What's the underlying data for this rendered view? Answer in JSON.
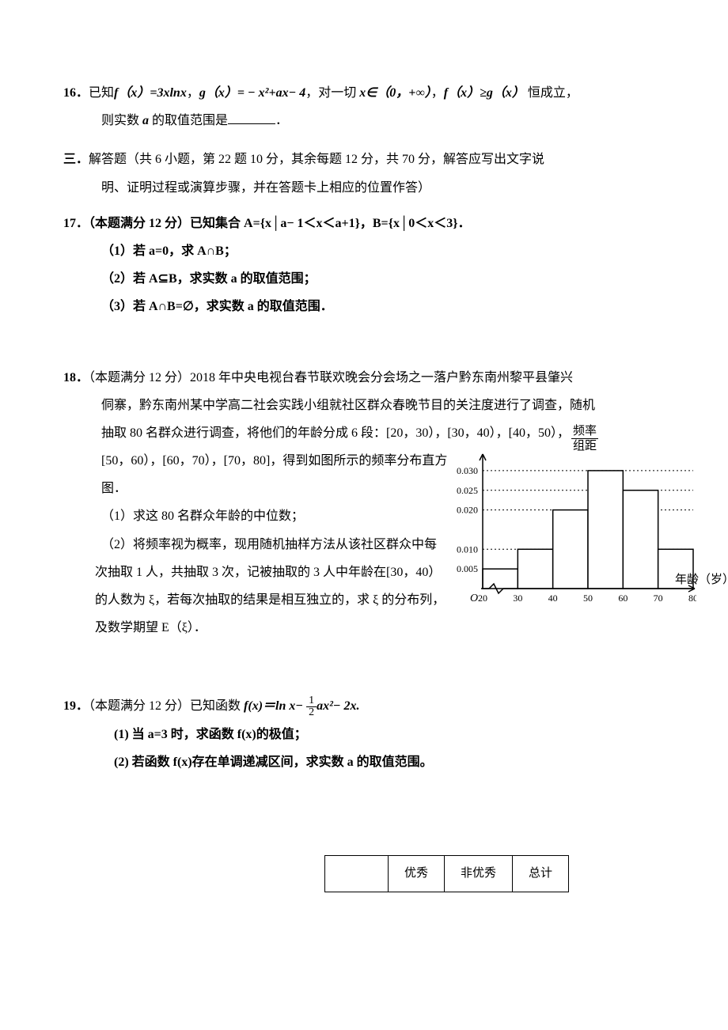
{
  "q16": {
    "num": "16．",
    "text_a": "已知",
    "fx": "f（x）=3xlnx",
    "comma1": "，",
    "gx": "g（x）= − x²+ax− 4",
    "comma2": "，对一切 ",
    "cond": "x∈（0，+∞）",
    "comma3": "，",
    "ineq": "f（x）≥g（x）",
    "tail": " 恒成立，",
    "line2_a": "则实数 ",
    "a": "a",
    "line2_b": " 的取值范围是",
    "period": "．"
  },
  "section3": {
    "label": "三．",
    "line1": "解答题（共 6 小题，第 22 题 10 分，其余每题 12 分，共 70 分，解答应写出文字说",
    "line2": "明、证明过程或演算步骤，并在答题卡上相应的位置作答）"
  },
  "q17": {
    "num": "17．",
    "main": "（本题满分 12 分）已知集合 A={x│a− 1＜x＜a+1}，B={x│0＜x＜3}．",
    "sub1": "（1）若 a=0，求 A∩B；",
    "sub2": "（2）若 A⊆B，求实数 a 的取值范围；",
    "sub3": "（3）若 A∩B=∅，求实数 a 的取值范围．"
  },
  "q18": {
    "num": "18．",
    "l1": "（本题满分 12 分）2018 年中央电视台春节联欢晚会分会场之一落户黔东南州黎平县肇兴",
    "l2": "侗寨，黔东南州某中学高二社会实践小组就社区群众春晚节目的关注度进行了调查，随机",
    "l3": "抽取 80 名群众进行调查，将他们的年龄分成 6 段：[20，30），[30，40），[40，50），",
    "l4": "[50，60），[60，70），[70，80]，得到如图所示的频率分布直方",
    "l5": "图．",
    "s1": "（1）求这 80 名群众年龄的中位数；",
    "s2a": "（2）将频率视为概率，现用随机抽样方法从该社区群众中每",
    "s2b": "次抽取 1 人，共抽取 3 次，记被抽取的 3 人中年龄在[30，40）",
    "s2c": "的人数为 ξ，若每次抽取的结果是相互独立的，求 ξ 的分布列，",
    "s2d": "及数学期望 E（ξ）．"
  },
  "histogram": {
    "type": "histogram",
    "ylabel_top": "频率",
    "ylabel_bot": "组距",
    "xlabel": "年龄（岁）",
    "yticks": [
      "0.005",
      "0.010",
      "0.020",
      "0.025",
      "0.030"
    ],
    "ytick_values": [
      0.005,
      0.01,
      0.02,
      0.025,
      0.03
    ],
    "yaxis_max": 0.033,
    "xticks": [
      "20",
      "30",
      "40",
      "50",
      "60",
      "70",
      "80"
    ],
    "xtick_values": [
      20,
      30,
      40,
      50,
      60,
      70,
      80
    ],
    "bars": [
      {
        "x0": 20,
        "x1": 30,
        "h": 0.005
      },
      {
        "x0": 30,
        "x1": 40,
        "h": 0.01
      },
      {
        "x0": 40,
        "x1": 50,
        "h": 0.02
      },
      {
        "x0": 50,
        "x1": 60,
        "h": 0.03
      },
      {
        "x0": 60,
        "x1": 70,
        "h": 0.025
      },
      {
        "x0": 70,
        "x1": 80,
        "h": 0.01
      }
    ],
    "bar_fill": "#ffffff",
    "bar_stroke": "#000000",
    "grid_stroke": "#000000",
    "axis_stroke": "#000000",
    "tick_fontsize": 12
  },
  "q19": {
    "num": "19．",
    "pre": "（本题满分 12 分）已知函数 ",
    "fx_a": "f(x)＝ln x− ",
    "frac_num": "1",
    "frac_den": "2",
    "fx_b": "ax²− 2x.",
    "sub1": "(1) 当 a=3 时，求函数 f(x)的极值；",
    "sub2": "(2) 若函数 f(x)存在单调递减区间，求实数 a 的取值范围。"
  },
  "table": {
    "columns": [
      "",
      "优秀",
      "非优秀",
      "总计"
    ]
  }
}
